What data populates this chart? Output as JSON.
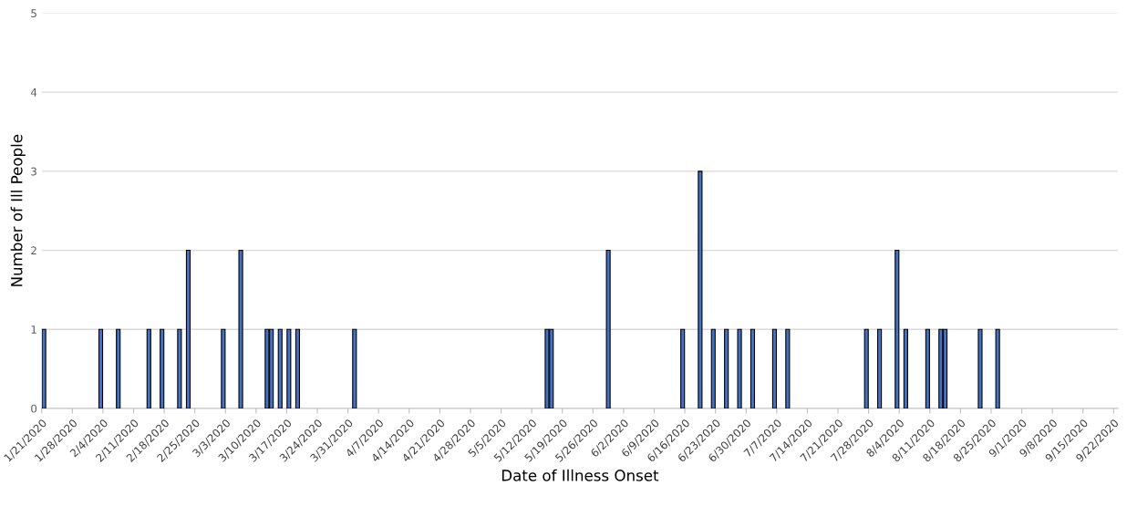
{
  "chart_data": {
    "type": "bar",
    "xlabel": "Date of Illness Onset",
    "ylabel": "Number of Ill People",
    "x": [
      "2020-01-21",
      "2020-02-03",
      "2020-02-07",
      "2020-02-14",
      "2020-02-17",
      "2020-02-21",
      "2020-02-23",
      "2020-03-02",
      "2020-03-06",
      "2020-03-12",
      "2020-03-13",
      "2020-03-15",
      "2020-03-17",
      "2020-03-19",
      "2020-04-01",
      "2020-05-15",
      "2020-05-16",
      "2020-05-29",
      "2020-06-15",
      "2020-06-19",
      "2020-06-22",
      "2020-06-25",
      "2020-06-28",
      "2020-07-01",
      "2020-07-06",
      "2020-07-09",
      "2020-07-27",
      "2020-07-30",
      "2020-08-03",
      "2020-08-05",
      "2020-08-10",
      "2020-08-13",
      "2020-08-14",
      "2020-08-22",
      "2020-08-26"
    ],
    "values": [
      1,
      1,
      1,
      1,
      1,
      1,
      2,
      1,
      2,
      1,
      1,
      1,
      1,
      1,
      1,
      1,
      1,
      2,
      1,
      3,
      1,
      1,
      1,
      1,
      1,
      1,
      1,
      1,
      2,
      1,
      1,
      1,
      1,
      1,
      1
    ],
    "color": "#4472c4",
    "xlim": [
      "2020-01-21",
      "2020-09-23"
    ],
    "xticks": [
      {
        "value": "2020-01-21",
        "label": "1/21/2020"
      },
      {
        "value": "2020-01-28",
        "label": "1/28/2020"
      },
      {
        "value": "2020-02-04",
        "label": "2/4/2020"
      },
      {
        "value": "2020-02-11",
        "label": "2/11/2020"
      },
      {
        "value": "2020-02-18",
        "label": "2/18/2020"
      },
      {
        "value": "2020-02-25",
        "label": "2/25/2020"
      },
      {
        "value": "2020-03-03",
        "label": "3/3/2020"
      },
      {
        "value": "2020-03-10",
        "label": "3/10/2020"
      },
      {
        "value": "2020-03-17",
        "label": "3/17/2020"
      },
      {
        "value": "2020-03-24",
        "label": "3/24/2020"
      },
      {
        "value": "2020-03-31",
        "label": "3/31/2020"
      },
      {
        "value": "2020-04-07",
        "label": "4/7/2020"
      },
      {
        "value": "2020-04-14",
        "label": "4/14/2020"
      },
      {
        "value": "2020-04-21",
        "label": "4/21/2020"
      },
      {
        "value": "2020-04-28",
        "label": "4/28/2020"
      },
      {
        "value": "2020-05-05",
        "label": "5/5/2020"
      },
      {
        "value": "2020-05-12",
        "label": "5/12/2020"
      },
      {
        "value": "2020-05-19",
        "label": "5/19/2020"
      },
      {
        "value": "2020-05-26",
        "label": "5/26/2020"
      },
      {
        "value": "2020-06-02",
        "label": "6/2/2020"
      },
      {
        "value": "2020-06-09",
        "label": "6/9/2020"
      },
      {
        "value": "2020-06-16",
        "label": "6/16/2020"
      },
      {
        "value": "2020-06-23",
        "label": "6/23/2020"
      },
      {
        "value": "2020-06-30",
        "label": "6/30/2020"
      },
      {
        "value": "2020-07-07",
        "label": "7/7/2020"
      },
      {
        "value": "2020-07-14",
        "label": "7/14/2020"
      },
      {
        "value": "2020-07-21",
        "label": "7/21/2020"
      },
      {
        "value": "2020-07-28",
        "label": "7/28/2020"
      },
      {
        "value": "2020-08-04",
        "label": "8/4/2020"
      },
      {
        "value": "2020-08-11",
        "label": "8/11/2020"
      },
      {
        "value": "2020-08-18",
        "label": "8/18/2020"
      },
      {
        "value": "2020-08-25",
        "label": "8/25/2020"
      },
      {
        "value": "2020-09-01",
        "label": "9/1/2020"
      },
      {
        "value": "2020-09-08",
        "label": "9/8/2020"
      },
      {
        "value": "2020-09-15",
        "label": "9/15/2020"
      },
      {
        "value": "2020-09-22",
        "label": "9/22/2020"
      }
    ],
    "ylim": [
      0,
      5
    ],
    "yticks": [
      0,
      1,
      2,
      3,
      4,
      5
    ],
    "grid": "y"
  }
}
